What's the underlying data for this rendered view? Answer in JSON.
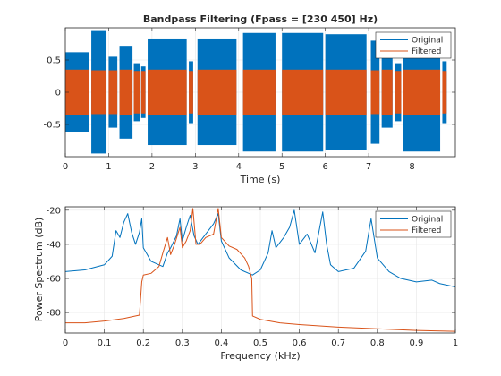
{
  "chart_data": [
    {
      "type": "line",
      "title": "Bandpass Filtering  (Fpass = [230 450] Hz)",
      "xlabel": "Time (s)",
      "ylabel": "",
      "xlim": [
        0,
        9
      ],
      "ylim": [
        -1.0,
        1.0
      ],
      "x_ticks": [
        0,
        1,
        2,
        3,
        4,
        5,
        6,
        7,
        8
      ],
      "y_ticks": [
        0.5,
        0,
        -0.5
      ],
      "y_tick_labels": [
        "0.5",
        "0",
        "-0.5"
      ],
      "grid": true,
      "legend": "top-right",
      "series": [
        {
          "name": "Original",
          "color": "#0072BD",
          "note_segments": [
            {
              "start": 0.0,
              "end": 0.55,
              "amp": 0.62
            },
            {
              "start": 0.6,
              "end": 0.95,
              "amp": 0.95
            },
            {
              "start": 1.0,
              "end": 1.2,
              "amp": 0.55
            },
            {
              "start": 1.25,
              "end": 1.55,
              "amp": 0.72
            },
            {
              "start": 1.58,
              "end": 1.72,
              "amp": 0.45
            },
            {
              "start": 1.75,
              "end": 1.85,
              "amp": 0.4
            },
            {
              "start": 1.9,
              "end": 2.8,
              "amp": 0.82
            },
            {
              "start": 2.85,
              "end": 2.95,
              "amp": 0.48
            },
            {
              "start": 3.05,
              "end": 3.95,
              "amp": 0.82
            },
            {
              "start": 4.1,
              "end": 4.85,
              "amp": 0.92
            },
            {
              "start": 5.0,
              "end": 5.95,
              "amp": 0.92
            },
            {
              "start": 6.0,
              "end": 6.95,
              "amp": 0.9
            },
            {
              "start": 7.05,
              "end": 7.25,
              "amp": 0.8
            },
            {
              "start": 7.3,
              "end": 7.55,
              "amp": 0.55
            },
            {
              "start": 7.6,
              "end": 7.75,
              "amp": 0.45
            },
            {
              "start": 7.8,
              "end": 8.65,
              "amp": 0.92
            },
            {
              "start": 8.7,
              "end": 8.8,
              "amp": 0.48
            }
          ]
        },
        {
          "name": "Filtered",
          "color": "#D95319",
          "note_segments": [
            {
              "start": 0.0,
              "end": 0.55,
              "amp": 0.35
            },
            {
              "start": 0.6,
              "end": 0.95,
              "amp": 0.34
            },
            {
              "start": 1.0,
              "end": 1.2,
              "amp": 0.34
            },
            {
              "start": 1.25,
              "end": 1.55,
              "amp": 0.35
            },
            {
              "start": 1.58,
              "end": 1.72,
              "amp": 0.33
            },
            {
              "start": 1.75,
              "end": 1.85,
              "amp": 0.33
            },
            {
              "start": 1.9,
              "end": 2.8,
              "amp": 0.35
            },
            {
              "start": 2.85,
              "end": 2.95,
              "amp": 0.33
            },
            {
              "start": 3.05,
              "end": 3.95,
              "amp": 0.35
            },
            {
              "start": 4.1,
              "end": 4.85,
              "amp": 0.35
            },
            {
              "start": 5.0,
              "end": 5.95,
              "amp": 0.35
            },
            {
              "start": 6.0,
              "end": 6.95,
              "amp": 0.35
            },
            {
              "start": 7.05,
              "end": 7.25,
              "amp": 0.34
            },
            {
              "start": 7.3,
              "end": 7.55,
              "amp": 0.35
            },
            {
              "start": 7.6,
              "end": 7.75,
              "amp": 0.33
            },
            {
              "start": 7.8,
              "end": 8.65,
              "amp": 0.35
            },
            {
              "start": 8.7,
              "end": 8.8,
              "amp": 0.33
            }
          ]
        }
      ]
    },
    {
      "type": "line",
      "title": "",
      "xlabel": "Frequency (kHz)",
      "ylabel": "Power Spectrum (dB)",
      "xlim": [
        0,
        1
      ],
      "ylim": [
        -92,
        -18
      ],
      "x_ticks": [
        0,
        0.1,
        0.2,
        0.3,
        0.4,
        0.5,
        0.6,
        0.7,
        0.8,
        0.9,
        1
      ],
      "x_tick_labels": [
        "0",
        "0.1",
        "0.2",
        "0.3",
        "0.4",
        "0.5",
        "0.6",
        "0.7",
        "0.8",
        "0.9",
        "1"
      ],
      "y_ticks": [
        -20,
        -40,
        -60,
        -80
      ],
      "y_tick_labels": [
        "-20",
        "-40",
        "-60",
        "-80"
      ],
      "grid": true,
      "legend": "top-right",
      "series": [
        {
          "name": "Original",
          "color": "#0072BD",
          "x": [
            0,
            0.05,
            0.1,
            0.12,
            0.13,
            0.14,
            0.15,
            0.16,
            0.17,
            0.18,
            0.19,
            0.196,
            0.2,
            0.22,
            0.25,
            0.262,
            0.27,
            0.285,
            0.294,
            0.3,
            0.31,
            0.32,
            0.33,
            0.34,
            0.36,
            0.38,
            0.392,
            0.4,
            0.42,
            0.45,
            0.48,
            0.5,
            0.52,
            0.53,
            0.54,
            0.56,
            0.575,
            0.587,
            0.6,
            0.62,
            0.64,
            0.66,
            0.67,
            0.68,
            0.7,
            0.74,
            0.77,
            0.784,
            0.8,
            0.83,
            0.86,
            0.9,
            0.94,
            0.96,
            1.0
          ],
          "y": [
            -56,
            -55,
            -52,
            -47,
            -32,
            -36,
            -27,
            -22,
            -33,
            -40,
            -33,
            -25,
            -42,
            -50,
            -53,
            -45,
            -42,
            -35,
            -25,
            -38,
            -30,
            -23,
            -35,
            -40,
            -34,
            -28,
            -22,
            -38,
            -48,
            -55,
            -58,
            -55,
            -45,
            -32,
            -42,
            -36,
            -30,
            -20,
            -40,
            -34,
            -45,
            -21,
            -40,
            -52,
            -56,
            -54,
            -44,
            -25,
            -48,
            -56,
            -60,
            -62,
            -61,
            -63,
            -65
          ]
        },
        {
          "name": "Filtered",
          "color": "#D95319",
          "x": [
            0,
            0.05,
            0.1,
            0.15,
            0.19,
            0.196,
            0.2,
            0.22,
            0.24,
            0.25,
            0.262,
            0.27,
            0.28,
            0.294,
            0.3,
            0.31,
            0.32,
            0.327,
            0.335,
            0.345,
            0.36,
            0.38,
            0.392,
            0.4,
            0.42,
            0.44,
            0.46,
            0.47,
            0.478,
            0.48,
            0.5,
            0.55,
            0.6,
            0.7,
            0.8,
            0.9,
            1.0
          ],
          "y": [
            -86,
            -86,
            -85,
            -83.5,
            -81.5,
            -62,
            -58,
            -57,
            -53,
            -45,
            -36,
            -46,
            -40,
            -30,
            -42,
            -38,
            -32,
            -19,
            -40,
            -40,
            -36,
            -34,
            -19,
            -36,
            -41,
            -43,
            -48,
            -53,
            -60,
            -82,
            -84,
            -86,
            -87,
            -88.5,
            -89.5,
            -90.5,
            -91
          ]
        }
      ]
    }
  ]
}
